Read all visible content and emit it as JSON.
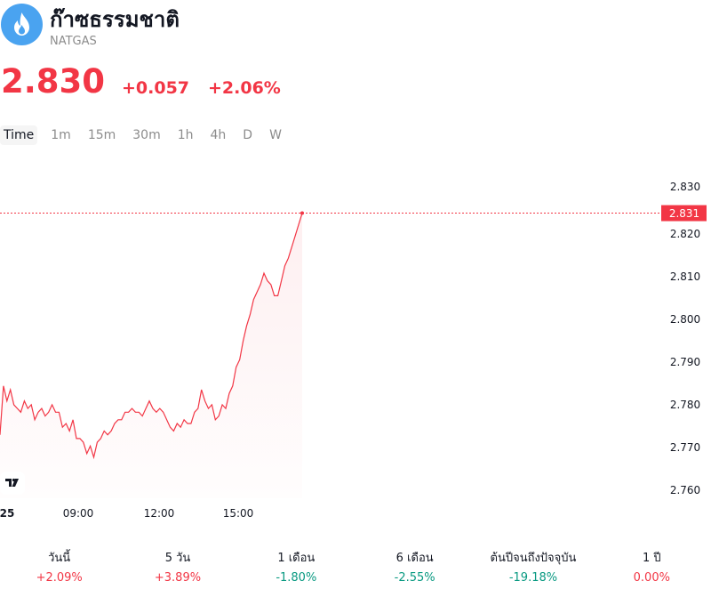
{
  "header": {
    "title": "ก๊าซธรรมชาติ",
    "ticker": "NATGAS"
  },
  "quote": {
    "price": "2.830",
    "change": "+0.057",
    "change_pct": "+2.06%"
  },
  "timeframes": [
    "Time",
    "1m",
    "15m",
    "30m",
    "1h",
    "4h",
    "D",
    "W"
  ],
  "active_timeframe": "Time",
  "colors": {
    "up": "#f23645",
    "down": "#089981",
    "line": "#f23645",
    "logo_bg": "#4aa3f0"
  },
  "chart_data": {
    "type": "area",
    "current_price_label": "2.831",
    "x_tick_labels": [
      "25",
      "09:00",
      "12:00",
      "15:00"
    ],
    "y_tick_labels": [
      "2.830",
      "2.820",
      "2.810",
      "2.800",
      "2.790",
      "2.780",
      "2.770",
      "2.760"
    ],
    "ylim": [
      2.757,
      2.838
    ],
    "y": [
      2.772,
      2.785,
      2.781,
      2.784,
      2.78,
      2.779,
      2.778,
      2.781,
      2.779,
      2.78,
      2.776,
      2.778,
      2.779,
      2.777,
      2.778,
      2.78,
      2.778,
      2.778,
      2.774,
      2.775,
      2.773,
      2.776,
      2.771,
      2.771,
      2.77,
      2.767,
      2.769,
      2.766,
      2.77,
      2.771,
      2.773,
      2.772,
      2.773,
      2.775,
      2.776,
      2.776,
      2.778,
      2.778,
      2.779,
      2.778,
      2.778,
      2.777,
      2.779,
      2.781,
      2.779,
      2.778,
      2.779,
      2.778,
      2.776,
      2.774,
      2.773,
      2.775,
      2.774,
      2.776,
      2.775,
      2.775,
      2.778,
      2.779,
      2.784,
      2.781,
      2.779,
      2.78,
      2.776,
      2.777,
      2.78,
      2.779,
      2.783,
      2.785,
      2.79,
      2.792,
      2.797,
      2.801,
      2.804,
      2.808,
      2.81,
      2.812,
      2.815,
      2.813,
      2.812,
      2.809,
      2.809,
      2.813,
      2.817,
      2.819,
      2.822,
      2.825,
      2.828,
      2.831
    ]
  },
  "performance": [
    {
      "label": "วันนี้",
      "value": "+2.09%",
      "dir": "pos"
    },
    {
      "label": "5 วัน",
      "value": "+3.89%",
      "dir": "pos"
    },
    {
      "label": "1 เดือน",
      "value": "-1.80%",
      "dir": "neg"
    },
    {
      "label": "6 เดือน",
      "value": "-2.55%",
      "dir": "neg"
    },
    {
      "label": "ต้นปีจนถึงปัจจุบัน",
      "value": "-19.18%",
      "dir": "neg"
    },
    {
      "label": "1 ปี",
      "value": "0.00%",
      "dir": "zero"
    }
  ]
}
